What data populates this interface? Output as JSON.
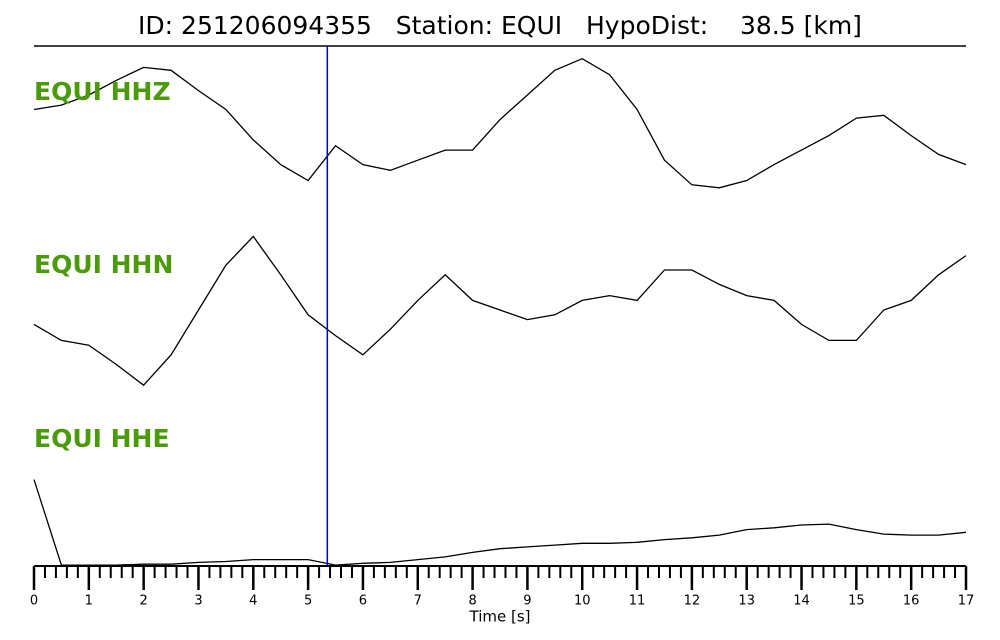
{
  "chart_data": {
    "type": "line",
    "title": "ID: 251206094355   Station: EQUI   HypoDist:    38.5 [km]",
    "x_label": "Time [s]",
    "x": [
      0,
      0.5,
      1,
      1.5,
      2,
      2.5,
      3,
      3.5,
      4,
      4.5,
      5,
      5.5,
      6,
      6.5,
      7,
      7.5,
      8,
      8.5,
      9,
      9.5,
      10,
      10.5,
      11,
      11.5,
      12,
      12.5,
      13,
      13.5,
      14,
      14.5,
      15,
      15.5,
      16,
      16.5,
      17
    ],
    "series": [
      {
        "name": "EQUI HHZ",
        "color": "#000000",
        "label_color": "#4a9a0a",
        "values": [
          0.59,
          0.62,
          0.69,
          0.79,
          0.88,
          0.86,
          0.72,
          0.59,
          0.38,
          0.21,
          0.1,
          0.34,
          0.21,
          0.17,
          0.24,
          0.31,
          0.31,
          0.52,
          0.69,
          0.86,
          0.94,
          0.83,
          0.59,
          0.24,
          0.07,
          0.05,
          0.1,
          0.21,
          0.31,
          0.41,
          0.53,
          0.55,
          0.41,
          0.28,
          0.21
        ]
      },
      {
        "name": "EQUI HHN",
        "color": "#000000",
        "label_color": "#4a9a0a",
        "values": [
          0.41,
          0.31,
          0.28,
          0.16,
          0.03,
          0.22,
          0.5,
          0.78,
          0.96,
          0.72,
          0.47,
          0.34,
          0.22,
          0.38,
          0.56,
          0.72,
          0.56,
          0.5,
          0.44,
          0.47,
          0.56,
          0.59,
          0.56,
          0.75,
          0.75,
          0.66,
          0.59,
          0.56,
          0.41,
          0.31,
          0.31,
          0.5,
          0.56,
          0.72,
          0.84
        ]
      },
      {
        "name": "EQUI HHE",
        "color": "#000000",
        "label_color": "#4a9a0a",
        "values": [
          0.95,
          0.01,
          0.01,
          0.01,
          0.02,
          0.02,
          0.04,
          0.05,
          0.07,
          0.07,
          0.07,
          0.01,
          0.03,
          0.04,
          0.07,
          0.1,
          0.15,
          0.19,
          0.21,
          0.23,
          0.25,
          0.25,
          0.26,
          0.29,
          0.31,
          0.34,
          0.4,
          0.42,
          0.45,
          0.46,
          0.4,
          0.35,
          0.34,
          0.34,
          0.37
        ]
      }
    ],
    "pick": 5.35,
    "pick_color": "#0000cc",
    "xlim": [
      0,
      17
    ],
    "ylim": [
      0,
      1
    ],
    "xticks": [
      0,
      1,
      2,
      3,
      4,
      5,
      6,
      7,
      8,
      9,
      10,
      11,
      12,
      13,
      14,
      15,
      16,
      17
    ],
    "xminorticks": [
      0.2,
      0.4,
      0.6,
      0.8,
      1.2,
      1.4,
      1.6,
      1.8,
      2.2,
      2.4,
      2.6,
      2.8,
      3.2,
      3.4,
      3.6,
      3.8,
      4.2,
      4.4,
      4.6,
      4.8,
      5.2,
      5.4,
      5.6,
      5.8,
      6.2,
      6.4,
      6.6,
      6.8,
      7.2,
      7.4,
      7.6,
      7.8,
      8.2,
      8.4,
      8.6,
      8.8,
      9.2,
      9.4,
      9.6,
      9.8,
      10.2,
      10.4,
      10.6,
      10.8,
      11.2,
      11.4,
      11.6,
      11.8,
      12.2,
      12.4,
      12.6,
      12.8,
      13.2,
      13.4,
      13.6,
      13.8,
      14.2,
      14.4,
      14.6,
      14.8,
      15.2,
      15.4,
      15.6,
      15.8,
      16.2,
      16.4,
      16.6,
      16.8
    ]
  }
}
